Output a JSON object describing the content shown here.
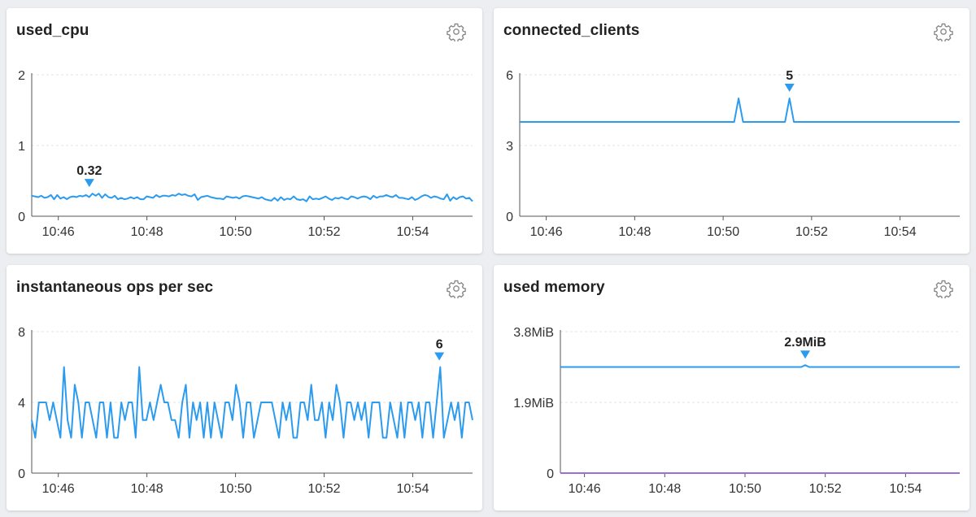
{
  "colors": {
    "series": "#2b9bf0",
    "baseline": "#9b6fd6",
    "grid": "#e3e3e3",
    "axis": "#555555",
    "icon": "#8a8a8a"
  },
  "panels": [
    {
      "title": "used_cpu",
      "settings_icon": "gear-icon",
      "chart_data": {
        "type": "line",
        "x_ticks": [
          "10:46",
          "10:48",
          "10:50",
          "10:52",
          "10:54"
        ],
        "y_ticks": [
          "0",
          "1",
          "2"
        ],
        "ylim": [
          0,
          2
        ],
        "x_range_minutes": [
          45.4,
          55.35
        ],
        "grid": true,
        "marker": {
          "x": 46.7,
          "y": 0.32,
          "label": "0.32"
        },
        "series": [
          {
            "values": [
              0.29,
              0.28,
              0.27,
              0.29,
              0.26,
              0.27,
              0.3,
              0.24,
              0.3,
              0.25,
              0.27,
              0.24,
              0.27,
              0.28,
              0.27,
              0.29,
              0.28,
              0.3,
              0.27,
              0.32,
              0.29,
              0.32,
              0.26,
              0.31,
              0.27,
              0.26,
              0.29,
              0.24,
              0.26,
              0.24,
              0.25,
              0.27,
              0.25,
              0.27,
              0.24,
              0.24,
              0.28,
              0.27,
              0.26,
              0.3,
              0.27,
              0.29,
              0.29,
              0.28,
              0.3,
              0.29,
              0.32,
              0.3,
              0.31,
              0.29,
              0.28,
              0.31,
              0.23,
              0.27,
              0.28,
              0.29,
              0.27,
              0.26,
              0.25,
              0.25,
              0.24,
              0.28,
              0.27,
              0.26,
              0.27,
              0.25,
              0.28,
              0.29,
              0.28,
              0.27,
              0.26,
              0.25,
              0.27,
              0.24,
              0.23,
              0.22,
              0.26,
              0.22,
              0.27,
              0.23,
              0.25,
              0.24,
              0.28,
              0.24,
              0.23,
              0.24,
              0.21,
              0.28,
              0.24,
              0.25,
              0.24,
              0.26,
              0.28,
              0.25,
              0.23,
              0.26,
              0.25,
              0.27,
              0.25,
              0.24,
              0.28,
              0.27,
              0.25,
              0.27,
              0.28,
              0.27,
              0.24,
              0.29,
              0.26,
              0.28,
              0.28,
              0.3,
              0.28,
              0.27,
              0.3,
              0.26,
              0.26,
              0.25,
              0.24,
              0.27,
              0.23,
              0.25,
              0.28,
              0.3,
              0.29,
              0.26,
              0.28,
              0.27,
              0.25,
              0.24,
              0.31,
              0.22,
              0.27,
              0.24,
              0.27,
              0.28,
              0.25,
              0.26,
              0.21
            ]
          }
        ]
      }
    },
    {
      "title": "connected_clients",
      "settings_icon": "gear-icon",
      "chart_data": {
        "type": "line",
        "x_ticks": [
          "10:46",
          "10:48",
          "10:50",
          "10:52",
          "10:54"
        ],
        "y_ticks": [
          "0",
          "3",
          "6"
        ],
        "ylim": [
          0,
          6
        ],
        "x_range_minutes": [
          45.4,
          55.35
        ],
        "grid": true,
        "marker": {
          "x": 51.5,
          "y": 5,
          "label": "5"
        },
        "series": [
          {
            "points": [
              [
                45.4,
                4
              ],
              [
                50.25,
                4
              ],
              [
                50.35,
                5
              ],
              [
                50.45,
                4
              ],
              [
                51.4,
                4
              ],
              [
                51.5,
                5
              ],
              [
                51.6,
                4
              ],
              [
                55.35,
                4
              ]
            ]
          }
        ]
      }
    },
    {
      "title": "instantaneous ops per sec",
      "settings_icon": "gear-icon",
      "chart_data": {
        "type": "line",
        "x_ticks": [
          "10:46",
          "10:48",
          "10:50",
          "10:52",
          "10:54"
        ],
        "y_ticks": [
          "0",
          "4",
          "8"
        ],
        "ylim": [
          0,
          8
        ],
        "x_range_minutes": [
          45.4,
          55.35
        ],
        "grid": true,
        "marker": {
          "x": 54.6,
          "y": 6,
          "label": "6"
        },
        "series": [
          {
            "values": [
              3,
              2,
              4,
              4,
              4,
              3,
              4,
              3,
              2,
              6,
              3,
              2,
              5,
              4,
              2,
              4,
              4,
              3,
              2,
              4,
              4,
              2,
              4,
              2,
              2,
              4,
              3,
              4,
              4,
              2,
              6,
              3,
              3,
              4,
              3,
              4,
              5,
              4,
              4,
              3,
              3,
              2,
              4,
              5,
              2,
              4,
              3,
              4,
              2,
              4,
              2,
              4,
              3,
              2,
              4,
              4,
              3,
              5,
              4,
              2,
              4,
              4,
              2,
              3,
              4,
              4,
              4,
              4,
              3,
              2,
              4,
              3,
              4,
              2,
              2,
              4,
              4,
              3,
              5,
              3,
              3,
              4,
              2,
              4,
              3,
              5,
              4,
              2,
              4,
              4,
              3,
              4,
              3,
              4,
              2,
              4,
              4,
              4,
              2,
              2,
              4,
              3,
              2,
              4,
              2,
              4,
              4,
              3,
              4,
              2,
              4,
              4,
              2,
              4,
              6,
              2,
              3,
              4,
              3,
              4,
              2,
              4,
              4,
              3
            ]
          }
        ]
      }
    },
    {
      "title": "used memory",
      "settings_icon": "gear-icon",
      "chart_data": {
        "type": "line",
        "x_ticks": [
          "10:46",
          "10:48",
          "10:50",
          "10:52",
          "10:54"
        ],
        "y_ticks": [
          "0",
          "1.9MiB",
          "3.8MiB"
        ],
        "ylim": [
          0,
          3.8
        ],
        "x_range_minutes": [
          45.4,
          55.35
        ],
        "grid": true,
        "marker": {
          "x": 51.5,
          "y": 2.9,
          "label": "2.9MiB"
        },
        "series": [
          {
            "points": [
              [
                45.4,
                2.85
              ],
              [
                51.4,
                2.85
              ],
              [
                51.5,
                2.9
              ],
              [
                51.6,
                2.85
              ],
              [
                55.35,
                2.85
              ]
            ]
          },
          {
            "points": [
              [
                45.4,
                0
              ],
              [
                55.35,
                0
              ]
            ]
          }
        ]
      }
    }
  ]
}
